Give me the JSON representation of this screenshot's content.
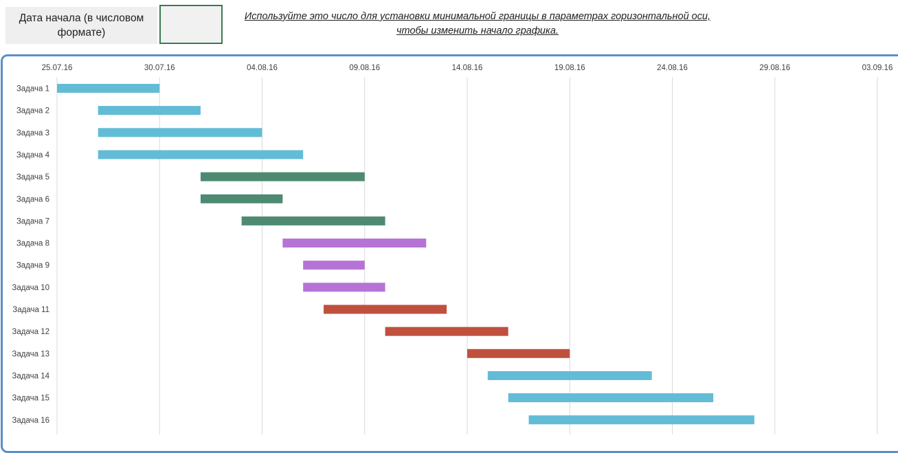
{
  "start_field": {
    "label": "Дата начала (в числовом формате)",
    "value": ""
  },
  "instruction_text": "Используйте это число для установки минимальной границы в параметрах горизонтальной оси, чтобы изменить начало графика.",
  "colors": {
    "frame": "#5b8ec7",
    "gridline": "#d9d9d9"
  },
  "chart_data": {
    "type": "gantt",
    "x_axis": {
      "min": "2016-07-25",
      "max": "2016-09-03",
      "tick_labels": [
        "25.07.16",
        "30.07.16",
        "04.08.16",
        "09.08.16",
        "14.08.16",
        "19.08.16",
        "24.08.16",
        "29.08.16",
        "03.09.16"
      ],
      "tick_dates": [
        "2016-07-25",
        "2016-07-30",
        "2016-08-04",
        "2016-08-09",
        "2016-08-14",
        "2016-08-19",
        "2016-08-24",
        "2016-08-29",
        "2016-09-03"
      ],
      "position": "top"
    },
    "grid": true,
    "tasks": [
      {
        "name": "Задача 1",
        "start": "2016-07-25",
        "end": "2016-07-30",
        "color": "#63bcd6"
      },
      {
        "name": "Задача 2",
        "start": "2016-07-27",
        "end": "2016-08-01",
        "color": "#63bcd6"
      },
      {
        "name": "Задача 3",
        "start": "2016-07-27",
        "end": "2016-08-04",
        "color": "#63bcd6"
      },
      {
        "name": "Задача 4",
        "start": "2016-07-27",
        "end": "2016-08-06",
        "color": "#63bcd6"
      },
      {
        "name": "Задача 5",
        "start": "2016-08-01",
        "end": "2016-08-09",
        "color": "#4e8a72"
      },
      {
        "name": "Задача 6",
        "start": "2016-08-01",
        "end": "2016-08-05",
        "color": "#4e8a72"
      },
      {
        "name": "Задача 7",
        "start": "2016-08-03",
        "end": "2016-08-10",
        "color": "#4e8a72"
      },
      {
        "name": "Задача 8",
        "start": "2016-08-05",
        "end": "2016-08-12",
        "color": "#b673d6"
      },
      {
        "name": "Задача 9",
        "start": "2016-08-06",
        "end": "2016-08-09",
        "color": "#b673d6"
      },
      {
        "name": "Задача 10",
        "start": "2016-08-06",
        "end": "2016-08-10",
        "color": "#b673d6"
      },
      {
        "name": "Задача 11",
        "start": "2016-08-07",
        "end": "2016-08-13",
        "color": "#c0503e"
      },
      {
        "name": "Задача 12",
        "start": "2016-08-10",
        "end": "2016-08-16",
        "color": "#c0503e"
      },
      {
        "name": "Задача 13",
        "start": "2016-08-14",
        "end": "2016-08-19",
        "color": "#c0503e"
      },
      {
        "name": "Задача 14",
        "start": "2016-08-15",
        "end": "2016-08-23",
        "color": "#63bcd6"
      },
      {
        "name": "Задача 15",
        "start": "2016-08-16",
        "end": "2016-08-26",
        "color": "#63bcd6"
      },
      {
        "name": "Задача 16",
        "start": "2016-08-17",
        "end": "2016-08-28",
        "color": "#63bcd6"
      }
    ]
  }
}
